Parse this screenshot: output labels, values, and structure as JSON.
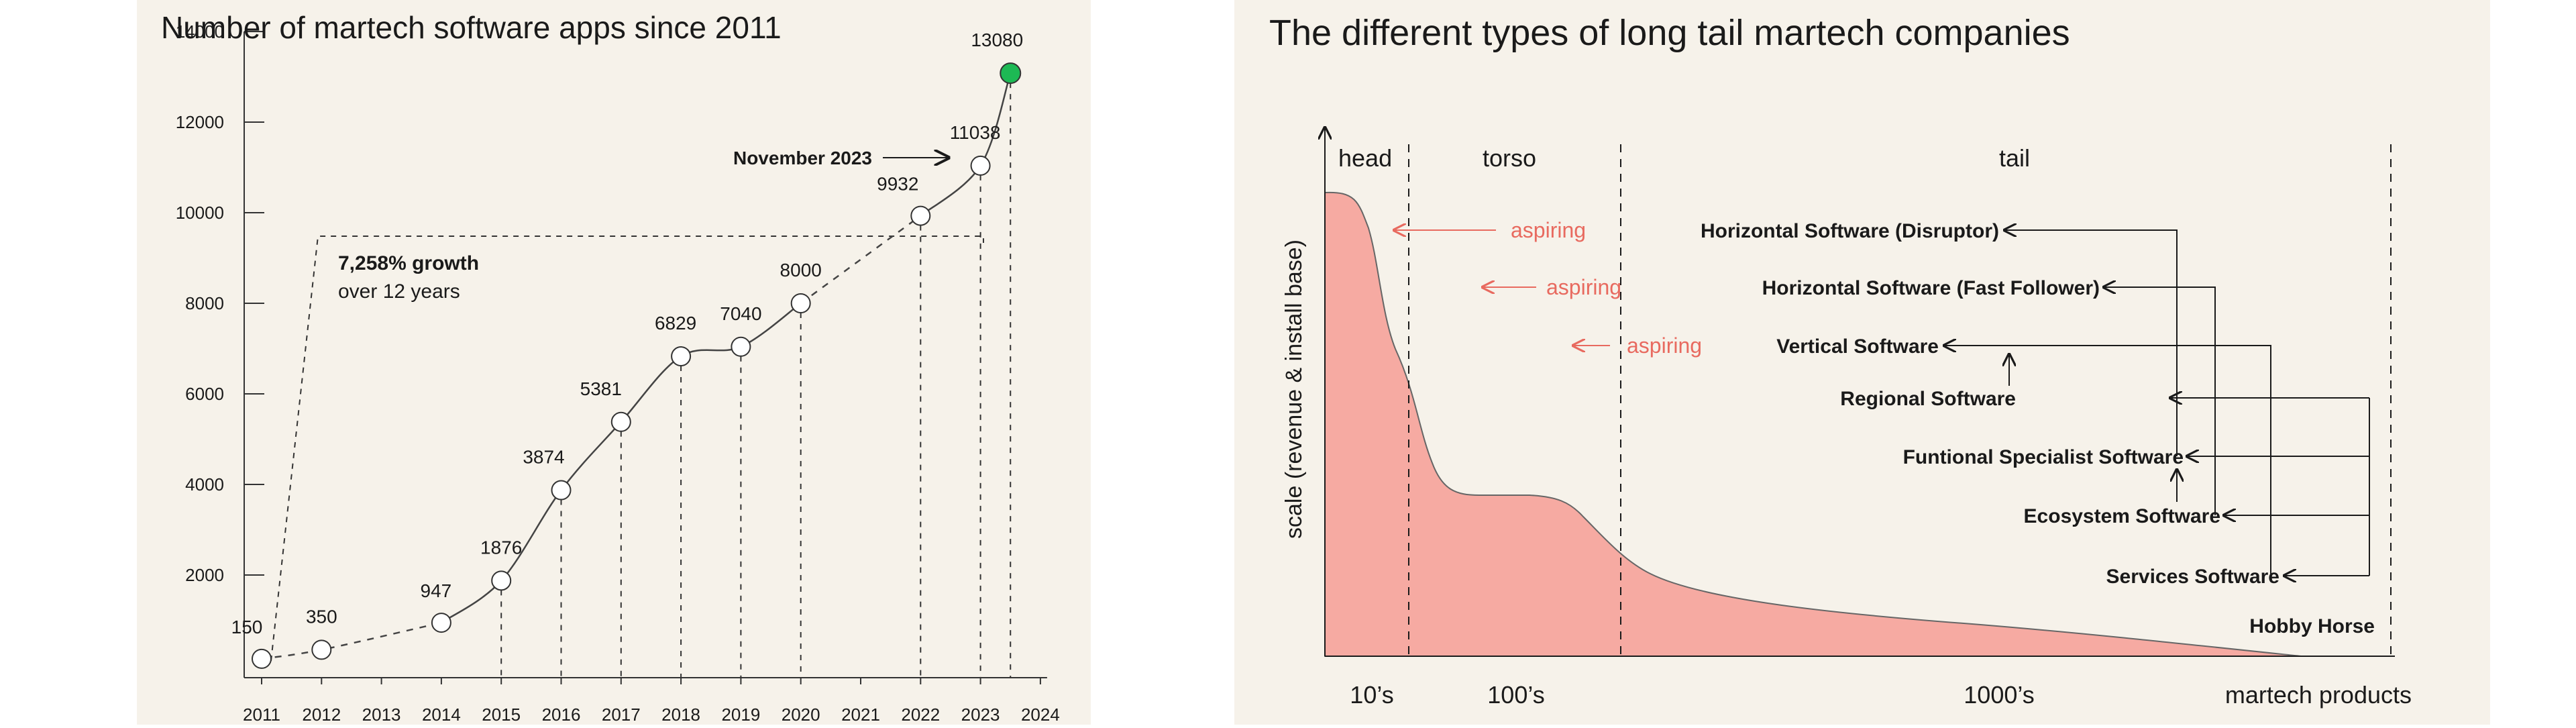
{
  "chart_data": [
    {
      "type": "line",
      "title": "Number of martech software apps since 2011",
      "x": [
        2011,
        2012,
        2014,
        2015,
        2016,
        2017,
        2018,
        2019,
        2020,
        2022,
        2023,
        2023.5
      ],
      "x_labels": [
        "2011",
        "2012",
        "2013",
        "2014",
        "2015",
        "2016",
        "2017",
        "2018",
        "2019",
        "2020",
        "2021",
        "2022",
        "2023",
        "2024"
      ],
      "y_ticks": [
        "2000",
        "4000",
        "6000",
        "8000",
        "10000",
        "12000",
        "14000"
      ],
      "series": [
        {
          "values": [
            150,
            350,
            947,
            1876,
            3874,
            5381,
            6829,
            7040,
            8000,
            9932,
            11038,
            13080
          ]
        }
      ],
      "point_labels": [
        "150",
        "350",
        "947",
        "1876",
        "3874",
        "5381",
        "6829",
        "7040",
        "8000",
        "9932",
        "11038",
        "13080"
      ],
      "xlim": [
        2011,
        2024
      ],
      "ylim": [
        0,
        14000
      ],
      "highlight": {
        "label": "November 2023",
        "color": "#1db954"
      },
      "growth": {
        "line1": "7,258% growth",
        "line2": "over 12 years"
      }
    },
    {
      "type": "area",
      "title": "The different types of long tail martech companies",
      "ylabel": "scale (revenue & install base)",
      "xlabel": "martech products",
      "fill_color": "#f6aaa2",
      "regions": [
        "head",
        "torso",
        "tail"
      ],
      "x_ticks": [
        "10’s",
        "100’s",
        "1000’s"
      ],
      "aspiring_label": "aspiring",
      "aspiring_color": "#e86a5f",
      "categories": [
        "Horizontal Software (Disruptor)",
        "Horizontal Software (Fast Follower)",
        "Vertical Software",
        "Regional Software",
        "Funtional Specialist Software",
        "Ecosystem Software",
        "Services Software",
        "Hobby Horse"
      ]
    }
  ]
}
